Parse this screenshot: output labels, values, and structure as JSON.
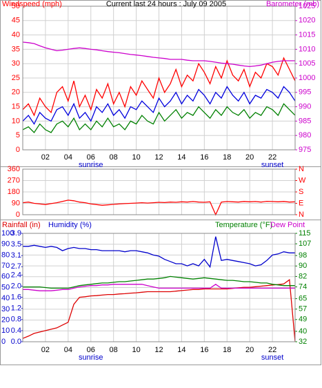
{
  "chart_data": [
    {
      "type": "line",
      "title": "Current last 24 hours : July 09 2005",
      "y_label": "Windspeed (mph)",
      "x": [
        0,
        0.5,
        1,
        1.5,
        2,
        2.5,
        3,
        3.5,
        4,
        4.5,
        5,
        5.5,
        6,
        6.5,
        7,
        7.5,
        8,
        8.5,
        9,
        9.5,
        10,
        10.5,
        11,
        11.5,
        12,
        12.5,
        13,
        13.5,
        14,
        14.5,
        15,
        15.5,
        16,
        16.5,
        17,
        17.5,
        18,
        18.5,
        19,
        19.5,
        20,
        20.5,
        21,
        21.5,
        22,
        22.5,
        23,
        23.5,
        24
      ],
      "xlim": [
        0,
        24
      ],
      "xticks": [
        {
          "value": 2,
          "label": "02"
        },
        {
          "value": 4,
          "label": "04"
        },
        {
          "value": 6,
          "label": "06"
        },
        {
          "value": 8,
          "label": "08"
        },
        {
          "value": 10,
          "label": "10"
        },
        {
          "value": 12,
          "label": "12"
        },
        {
          "value": 14,
          "label": "14"
        },
        {
          "value": 16,
          "label": "16"
        },
        {
          "value": 18,
          "label": "18"
        },
        {
          "value": 20,
          "label": "20"
        },
        {
          "value": 22,
          "label": "22"
        }
      ],
      "ylim": [
        0,
        50
      ],
      "yticks": [
        0,
        5,
        10,
        15,
        20,
        25,
        30,
        35,
        40,
        45,
        50
      ],
      "ytick_color": "#ff0000",
      "y2lim": [
        975,
        1025
      ],
      "y2ticks": [
        975,
        980,
        985,
        990,
        995,
        1000,
        1005,
        1010,
        1015,
        1020,
        1025
      ],
      "y2tick_color": "#cc00cc",
      "grid": true,
      "annotations": [
        {
          "text": "sunrise",
          "x": 6
        },
        {
          "text": "sunset",
          "x": 22
        }
      ],
      "series": [
        {
          "color": "#ff0000",
          "values": [
            14,
            16,
            12,
            18,
            15,
            13,
            20,
            22,
            17,
            24,
            15,
            19,
            14,
            21,
            18,
            23,
            16,
            20,
            15,
            22,
            19,
            24,
            21,
            18,
            25,
            20,
            23,
            28,
            22,
            26,
            24,
            30,
            27,
            23,
            29,
            25,
            31,
            26,
            24,
            28,
            22,
            27,
            25,
            30,
            29,
            26,
            32,
            28,
            24
          ]
        },
        {
          "color": "#0000dd",
          "values": [
            10,
            12,
            9,
            13,
            11,
            10,
            14,
            15,
            12,
            16,
            11,
            13,
            10,
            15,
            13,
            16,
            12,
            14,
            11,
            15,
            14,
            17,
            15,
            13,
            18,
            15,
            17,
            20,
            16,
            19,
            17,
            21,
            19,
            16,
            20,
            18,
            22,
            19,
            17,
            20,
            16,
            19,
            18,
            21,
            20,
            18,
            22,
            20,
            17
          ]
        },
        {
          "color": "#008000",
          "values": [
            7,
            8,
            6,
            9,
            7,
            6,
            9,
            10,
            8,
            11,
            7,
            9,
            7,
            10,
            8,
            11,
            8,
            9,
            7,
            10,
            9,
            12,
            10,
            9,
            13,
            10,
            12,
            14,
            11,
            13,
            12,
            15,
            13,
            11,
            14,
            12,
            15,
            13,
            12,
            14,
            11,
            13,
            12,
            15,
            14,
            12,
            16,
            14,
            12
          ]
        },
        {
          "name": "Barometer (mb)",
          "color": "#cc00cc",
          "axis": "y2",
          "values": [
            1012.5,
            1012.3,
            1012,
            1011.2,
            1010.5,
            1010,
            1009.5,
            1009.7,
            1010,
            1010.3,
            1010.5,
            1010.3,
            1010,
            1009.8,
            1009.5,
            1009.2,
            1009,
            1008.8,
            1008.5,
            1008.2,
            1008,
            1007.8,
            1007.5,
            1007.2,
            1007,
            1006.8,
            1006.5,
            1006.5,
            1006.5,
            1006.2,
            1006,
            1006,
            1006,
            1005.8,
            1005.5,
            1005.2,
            1005,
            1004.8,
            1004.5,
            1004.2,
            1004,
            1004.2,
            1004.5,
            1005,
            1005.5,
            1005.8,
            1006,
            1006,
            1006
          ]
        }
      ]
    },
    {
      "type": "line",
      "x": [
        0,
        0.5,
        1,
        1.5,
        2,
        2.5,
        3,
        3.5,
        4,
        4.5,
        5,
        5.5,
        6,
        6.5,
        7,
        7.5,
        8,
        8.5,
        9,
        9.5,
        10,
        10.5,
        11,
        11.5,
        12,
        12.5,
        13,
        13.5,
        14,
        14.5,
        15,
        15.5,
        16,
        16.5,
        17,
        17.5,
        18,
        18.5,
        19,
        19.5,
        20,
        20.5,
        21,
        21.5,
        22,
        22.5,
        23,
        23.5,
        24
      ],
      "xlim": [
        0,
        24
      ],
      "xticks": [
        2,
        4,
        6,
        8,
        10,
        12,
        14,
        16,
        18,
        20,
        22
      ],
      "show_xtick_labels": false,
      "ylim": [
        0,
        360
      ],
      "yticks": [
        0,
        90,
        180,
        270,
        360
      ],
      "ytick_color": "#ff0000",
      "y2lim": [
        0,
        360
      ],
      "y2ticks": [
        {
          "value": 0,
          "label": "N"
        },
        {
          "value": 90,
          "label": "E"
        },
        {
          "value": 180,
          "label": "S"
        },
        {
          "value": 270,
          "label": "W"
        },
        {
          "value": 360,
          "label": "N"
        }
      ],
      "y2tick_color": "#ff0000",
      "grid": true,
      "series": [
        {
          "color": "#ff0000",
          "values": [
            95,
            100,
            90,
            85,
            80,
            88,
            95,
            105,
            115,
            110,
            100,
            95,
            85,
            80,
            75,
            78,
            82,
            85,
            88,
            90,
            92,
            95,
            92,
            95,
            98,
            96,
            100,
            98,
            102,
            100,
            104,
            100,
            98,
            102,
            0,
            100,
            104,
            102,
            100,
            105,
            102,
            104,
            100,
            106,
            104,
            102,
            105,
            100,
            102
          ]
        }
      ]
    },
    {
      "type": "line",
      "x": [
        0,
        0.5,
        1,
        1.5,
        2,
        2.5,
        3,
        3.5,
        4,
        4.5,
        5,
        5.5,
        6,
        6.5,
        7,
        7.5,
        8,
        8.5,
        9,
        9.5,
        10,
        10.5,
        11,
        11.5,
        12,
        12.5,
        13,
        13.5,
        14,
        14.5,
        15,
        15.5,
        16,
        16.5,
        17,
        17.5,
        18,
        18.5,
        19,
        19.5,
        20,
        20.5,
        21,
        21.5,
        22,
        22.5,
        23,
        23.5,
        24
      ],
      "xlim": [
        0,
        24
      ],
      "xticks": [
        {
          "value": 2,
          "label": "02"
        },
        {
          "value": 4,
          "label": "04"
        },
        {
          "value": 6,
          "label": "06"
        },
        {
          "value": 8,
          "label": "08"
        },
        {
          "value": 10,
          "label": "10"
        },
        {
          "value": 12,
          "label": "12"
        },
        {
          "value": 14,
          "label": "14"
        },
        {
          "value": 16,
          "label": "16"
        },
        {
          "value": 18,
          "label": "18"
        },
        {
          "value": 20,
          "label": "20"
        },
        {
          "value": 22,
          "label": "22"
        }
      ],
      "ylim": [
        0,
        100
      ],
      "yticks": [
        0,
        10,
        20,
        30,
        40,
        50,
        60,
        70,
        80,
        90,
        100
      ],
      "ytick_color": "#0000cc",
      "y2lim": [
        32,
        115
      ],
      "y2ticks": [
        32,
        40,
        49,
        57,
        65,
        74,
        82,
        90,
        98,
        107,
        115
      ],
      "y2tick_color": "#008000",
      "y3lim": [
        0,
        3.9
      ],
      "y3ticks": [
        {
          "value": 0,
          "label": "0.0"
        },
        0.4,
        0.8,
        1.2,
        1.6,
        {
          "value": 2,
          "label": "2.0"
        },
        2.4,
        2.7,
        3.1,
        3.5,
        3.9
      ],
      "y3tick_color": "#0000cc",
      "grid": true,
      "annotations": [
        {
          "text": "sunrise",
          "x": 6
        },
        {
          "text": "sunset",
          "x": 22
        }
      ],
      "series": [
        {
          "name": "Rainfall (in)",
          "color": "#dd0000",
          "axis": "y3",
          "values": [
            0.12,
            0.2,
            0.3,
            0.35,
            0.4,
            0.45,
            0.5,
            0.6,
            0.7,
            1.35,
            1.6,
            1.62,
            1.65,
            1.66,
            1.68,
            1.7,
            1.7,
            1.72,
            1.73,
            1.75,
            1.76,
            1.78,
            1.8,
            1.8,
            1.8,
            1.8,
            1.8,
            1.82,
            1.84,
            1.86,
            1.88,
            1.88,
            1.9,
            1.9,
            1.9,
            1.9,
            1.9,
            1.92,
            1.94,
            1.96,
            1.96,
            1.98,
            2.0,
            2.02,
            2.04,
            2.06,
            2.08,
            2.23,
            0
          ]
        },
        {
          "name": "Humidity (%)",
          "color": "#0000cc",
          "axis": "y",
          "values": [
            88,
            88,
            89,
            88,
            87,
            88,
            87,
            84,
            86,
            87,
            86,
            86,
            85,
            85,
            84,
            84,
            84,
            84,
            83,
            84,
            84,
            83,
            82,
            80,
            79,
            76,
            74,
            72,
            72,
            70,
            72,
            70,
            76,
            69,
            97,
            75,
            76,
            75,
            74,
            73,
            72,
            70,
            71,
            75,
            80,
            81,
            83,
            82,
            82
          ]
        },
        {
          "name": "Temperature (°F)",
          "color": "#008000",
          "axis": "y2",
          "values": [
            74,
            74,
            74,
            74,
            73.5,
            73,
            73,
            73,
            73,
            74,
            75,
            75.5,
            76,
            76.5,
            77,
            77,
            77.5,
            78,
            78,
            78.5,
            79,
            79.5,
            80,
            80,
            80.5,
            81,
            82,
            81.5,
            81,
            80.5,
            80,
            80.5,
            81,
            80.5,
            80,
            79.5,
            79,
            79,
            78.5,
            78,
            78,
            77.5,
            77,
            77,
            76,
            75.5,
            75,
            75,
            75
          ]
        },
        {
          "name": "Dew Point",
          "color": "#cc00cc",
          "axis": "y2",
          "values": [
            72,
            72,
            71.5,
            71,
            71,
            71,
            71.5,
            72,
            72,
            73,
            74,
            74.5,
            75,
            75,
            75.5,
            75.5,
            76,
            76,
            76,
            76,
            76,
            76,
            75,
            74,
            73,
            73,
            73,
            73,
            73,
            73,
            73,
            73,
            73,
            73,
            76,
            73,
            73,
            73,
            73,
            73,
            73,
            73,
            73,
            73,
            73,
            73,
            73,
            73,
            73
          ]
        }
      ]
    }
  ]
}
